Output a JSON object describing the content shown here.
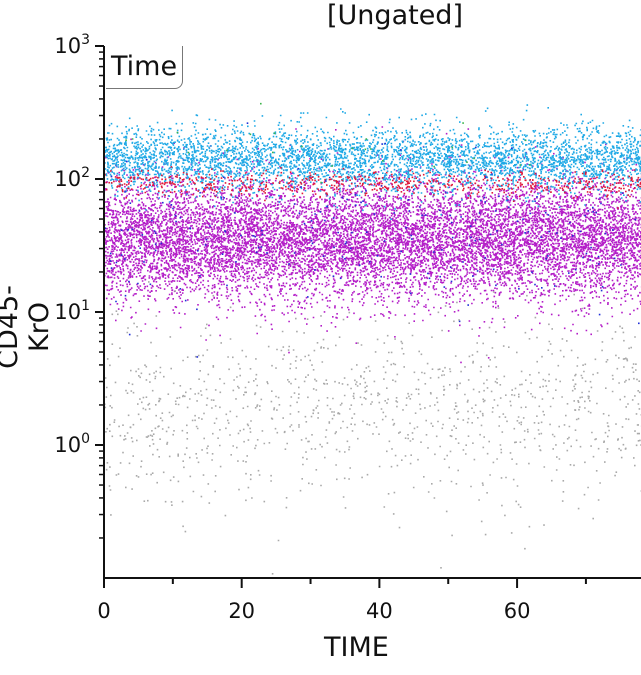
{
  "chart_data": {
    "type": "scatter",
    "title": "[Ungated]",
    "xlabel": "TIME",
    "ylabel": "CD45-KrO",
    "gate_label": "Time",
    "xlim": [
      0,
      78
    ],
    "ylim_log10": [
      -1,
      3
    ],
    "x_ticks": [
      0,
      20,
      40,
      60
    ],
    "y_ticks": [
      {
        "base": "10",
        "exp": "0",
        "value": 1
      },
      {
        "base": "10",
        "exp": "1",
        "value": 10
      },
      {
        "base": "10",
        "exp": "2",
        "value": 100
      },
      {
        "base": "10",
        "exp": "3",
        "value": 1000
      }
    ],
    "scale": "log",
    "populations": [
      {
        "color": "#b41ec8",
        "log10_center": 1.55,
        "log10_spread": 0.22,
        "count": 11000
      },
      {
        "color": "#1fa9e6",
        "log10_center": 2.15,
        "log10_spread": 0.12,
        "count": 4200
      },
      {
        "color": "#e0183a",
        "log10_center": 1.97,
        "log10_spread": 0.05,
        "count": 650
      },
      {
        "color": "#2030d8",
        "log10_center": 1.6,
        "log10_spread": 0.3,
        "count": 230
      },
      {
        "color": "#a9a9a9",
        "log10_center": 0.28,
        "log10_spread": 0.35,
        "count": 1100
      },
      {
        "color": "#3cb44b",
        "log10_center": 2.25,
        "log10_spread": 0.12,
        "count": 25
      }
    ]
  }
}
